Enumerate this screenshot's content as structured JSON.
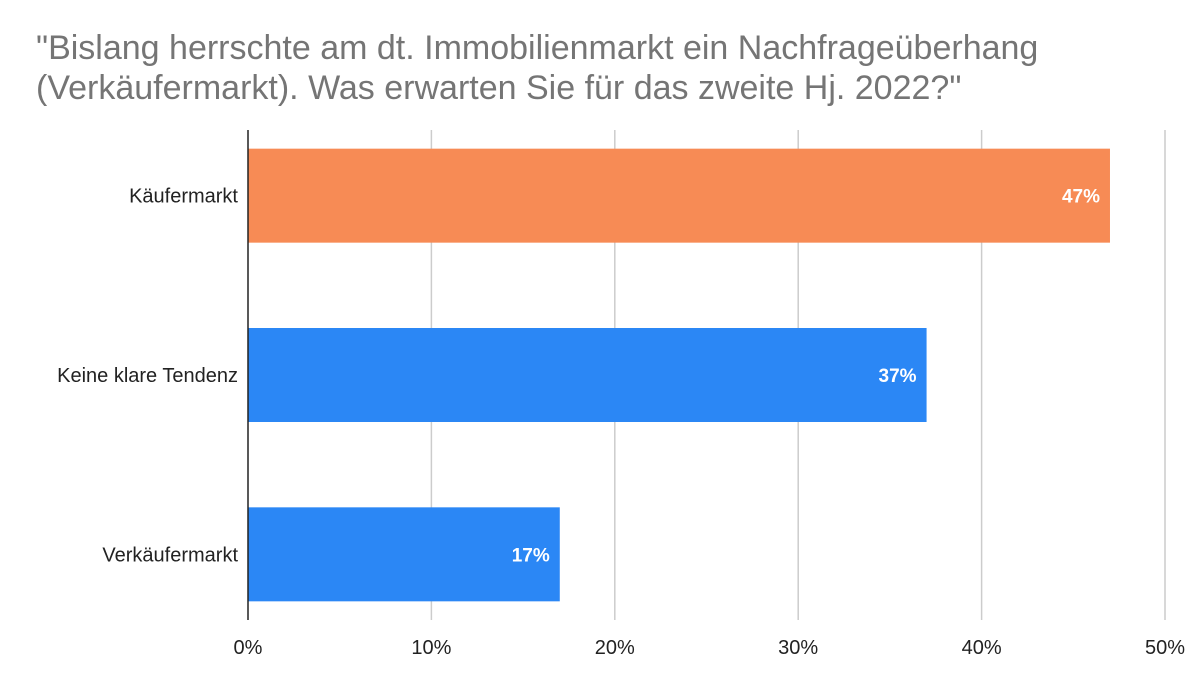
{
  "chart_data": {
    "type": "bar",
    "orientation": "horizontal",
    "title": "\"Bislang herrschte am dt. Immobilienmarkt ein Nachfrageüberhang (Verkäufermarkt). Was erwarten Sie für das zweite Hj. 2022?\"",
    "categories": [
      "Käufermarkt",
      "Keine klare Tendenz",
      "Verkäufermarkt"
    ],
    "values": [
      47,
      37,
      17
    ],
    "data_labels": [
      "47%",
      "37%",
      "17%"
    ],
    "bar_colors": [
      "#f78b55",
      "#2b87f5",
      "#2b87f5"
    ],
    "xlim": [
      0,
      50
    ],
    "x_ticks": [
      0,
      10,
      20,
      30,
      40,
      50
    ],
    "x_tick_labels": [
      "0%",
      "10%",
      "20%",
      "30%",
      "40%",
      "50%"
    ],
    "grid": true,
    "legend": "none",
    "xlabel": "",
    "ylabel": ""
  }
}
